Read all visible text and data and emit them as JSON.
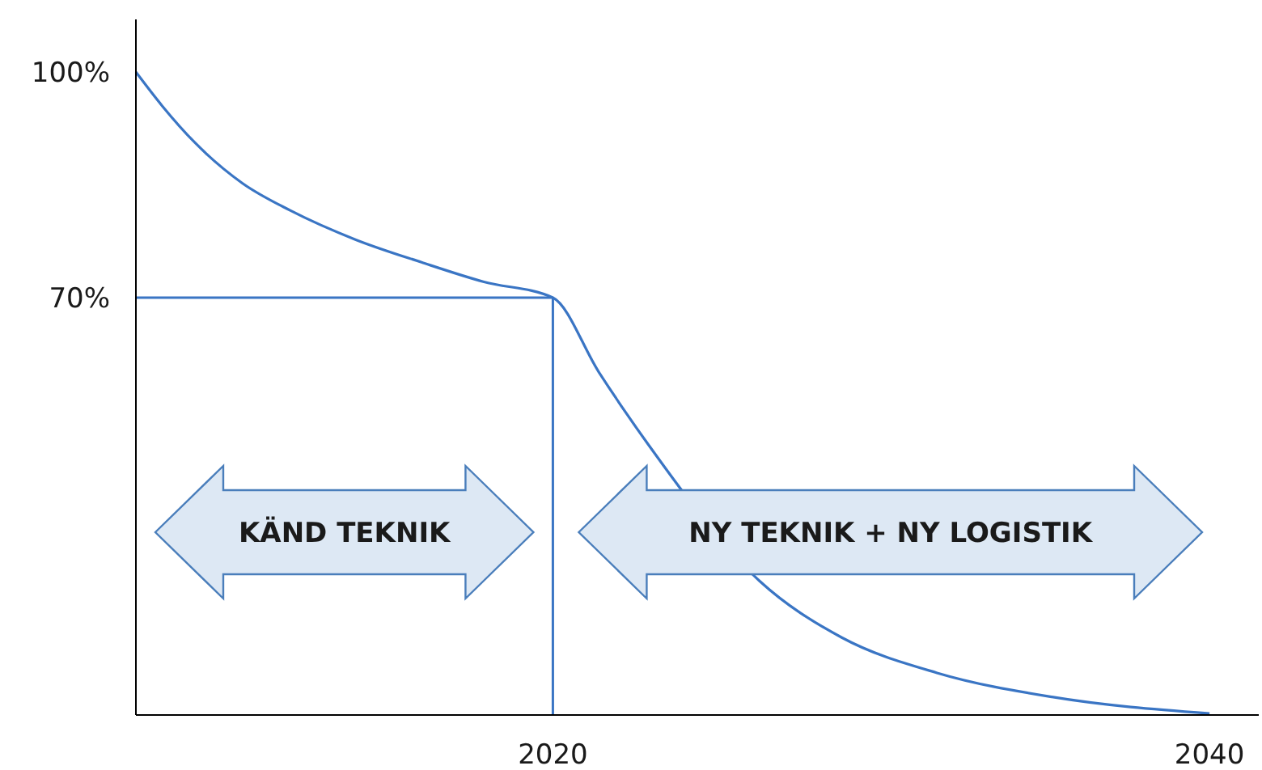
{
  "chart_data": {
    "type": "line",
    "x": [
      2007.3,
      2008.1,
      2009.1,
      2010.55,
      2012.0,
      2014.0,
      2016.0,
      2017.9,
      2020,
      2021.4,
      2022.9,
      2024.3,
      2026.3,
      2028.8,
      2031.7,
      2035.2,
      2040
    ],
    "series": [
      {
        "color": "#3a75c4",
        "values": [
          100,
          95.5,
          90.6,
          85.2,
          81.6,
          77.7,
          74.7,
          72.1,
          70,
          60.1,
          50.5,
          null,
          32.3,
          24.8,
          20.1,
          16.9,
          14.7
        ]
      }
    ],
    "xlim": [
      2007.3,
      2041.5
    ],
    "xticks": [
      2020,
      2040
    ],
    "ylim": [
      14.5,
      107
    ],
    "yticks": [
      {
        "value": 70,
        "label": "70%"
      },
      {
        "value": 100,
        "label": "100%"
      }
    ],
    "grid": false,
    "marker": "none",
    "line_style": "solid",
    "ref_lines": [
      {
        "axis": "y",
        "value": 70,
        "color": "#3a75c4"
      },
      {
        "axis": "x",
        "value": 2020,
        "color": "#3a75c4"
      }
    ],
    "annotations": [
      "KÄND TEKNIK",
      "NY TEKNIK + NY LOGISTIK"
    ]
  }
}
